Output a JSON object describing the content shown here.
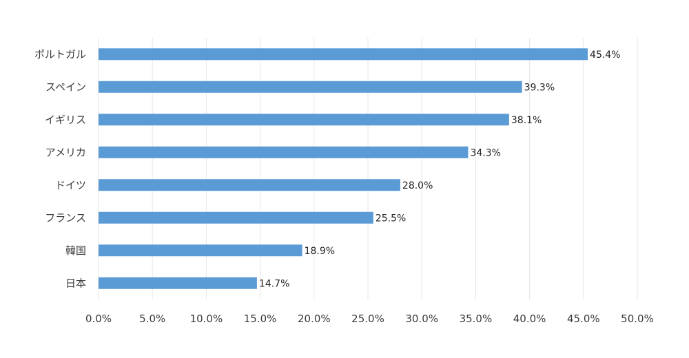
{
  "chart_data": {
    "type": "bar",
    "orientation": "horizontal",
    "categories": [
      "ポルトガル",
      "スペイン",
      "イギリス",
      "アメリカ",
      "ドイツ",
      "フランス",
      "韓国",
      "日本"
    ],
    "values": [
      45.4,
      39.3,
      38.1,
      34.3,
      28.0,
      25.5,
      18.9,
      14.7
    ],
    "data_labels": [
      "45.4%",
      "39.3%",
      "38.1%",
      "34.3%",
      "28.0%",
      "25.5%",
      "18.9%",
      "14.7%"
    ],
    "xlim": [
      0,
      50
    ],
    "x_ticks": [
      0,
      5,
      10,
      15,
      20,
      25,
      30,
      35,
      40,
      45,
      50
    ],
    "x_tick_labels": [
      "0.0%",
      "5.0%",
      "10.0%",
      "15.0%",
      "20.0%",
      "25.0%",
      "30.0%",
      "35.0%",
      "40.0%",
      "45.0%",
      "50.0%"
    ],
    "title": "",
    "xlabel": "",
    "ylabel": "",
    "grid": "vertical",
    "legend": "none",
    "bar_color": "#5b9bd5"
  }
}
